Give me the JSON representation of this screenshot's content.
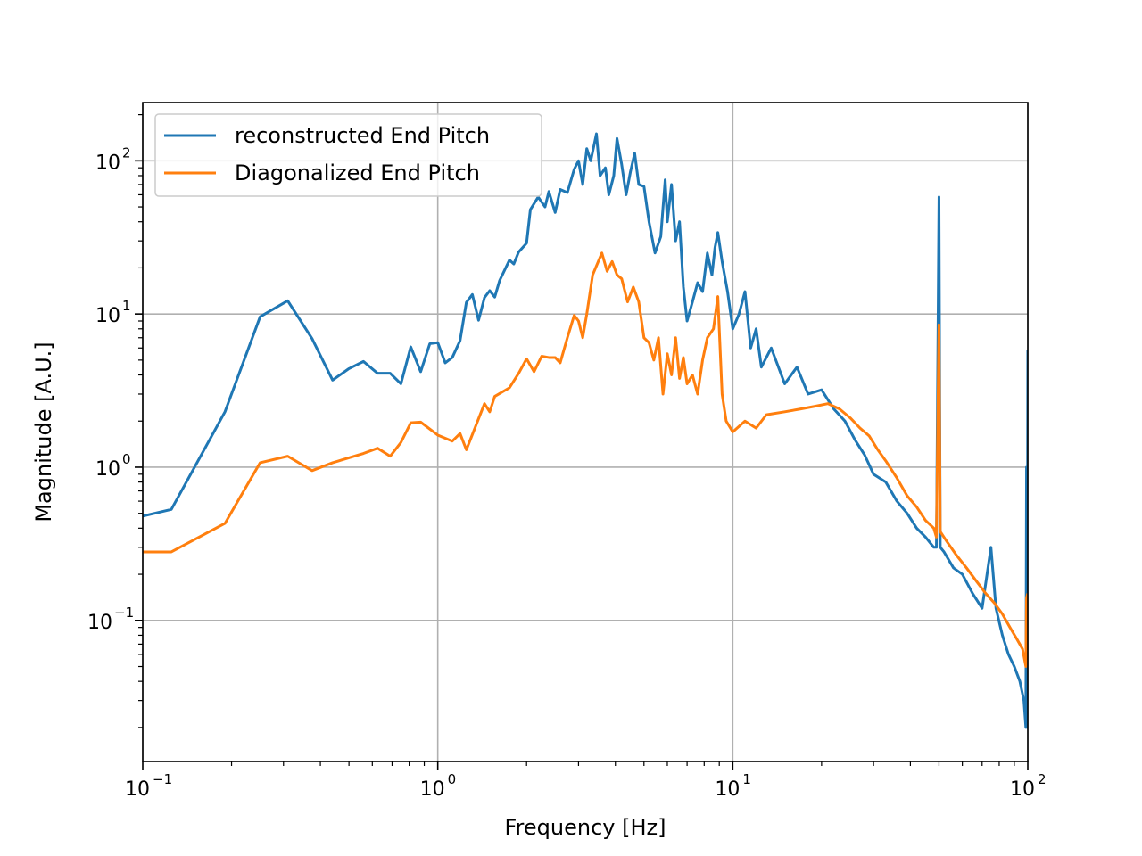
{
  "chart_data": {
    "type": "line",
    "title": "",
    "xlabel": "Frequency [Hz]",
    "ylabel": "Magnitude [A.U.]",
    "xscale": "log",
    "yscale": "log",
    "xlim": [
      0.1,
      100
    ],
    "ylim": [
      0.012,
      240
    ],
    "grid": true,
    "legend_position": "top-left",
    "x_ticks": [
      {
        "base": "10",
        "exp": "−1",
        "value": 0.1
      },
      {
        "base": "10",
        "exp": "0",
        "value": 1
      },
      {
        "base": "10",
        "exp": "1",
        "value": 10
      },
      {
        "base": "10",
        "exp": "2",
        "value": 100
      }
    ],
    "y_ticks": [
      {
        "base": "10",
        "exp": "−1",
        "value": 0.1
      },
      {
        "base": "10",
        "exp": "0",
        "value": 1
      },
      {
        "base": "10",
        "exp": "1",
        "value": 10
      },
      {
        "base": "10",
        "exp": "2",
        "value": 100
      }
    ],
    "series": [
      {
        "name": "reconstructed End Pitch",
        "color": "#1f77b4",
        "points": [
          [
            0.1,
            0.48
          ],
          [
            0.125,
            0.53
          ],
          [
            0.19,
            2.3
          ],
          [
            0.25,
            9.6
          ],
          [
            0.31,
            12.2
          ],
          [
            0.375,
            6.9
          ],
          [
            0.44,
            3.7
          ],
          [
            0.5,
            4.4
          ],
          [
            0.56,
            4.9
          ],
          [
            0.625,
            4.1
          ],
          [
            0.69,
            4.1
          ],
          [
            0.75,
            3.5
          ],
          [
            0.81,
            6.1
          ],
          [
            0.875,
            4.2
          ],
          [
            0.94,
            6.4
          ],
          [
            1.0,
            6.5
          ],
          [
            1.06,
            4.8
          ],
          [
            1.12,
            5.2
          ],
          [
            1.19,
            6.7
          ],
          [
            1.25,
            11.9
          ],
          [
            1.31,
            13.4
          ],
          [
            1.375,
            9.1
          ],
          [
            1.44,
            12.8
          ],
          [
            1.5,
            14.2
          ],
          [
            1.56,
            12.9
          ],
          [
            1.62,
            16.5
          ],
          [
            1.75,
            22.5
          ],
          [
            1.81,
            21.2
          ],
          [
            1.88,
            25.4
          ],
          [
            2.0,
            29.0
          ],
          [
            2.06,
            48.0
          ],
          [
            2.19,
            58.0
          ],
          [
            2.31,
            50.0
          ],
          [
            2.38,
            63.0
          ],
          [
            2.5,
            46.0
          ],
          [
            2.6,
            65.0
          ],
          [
            2.75,
            62.0
          ],
          [
            2.9,
            88.0
          ],
          [
            3.0,
            100.0
          ],
          [
            3.1,
            70.0
          ],
          [
            3.2,
            120.0
          ],
          [
            3.3,
            100.0
          ],
          [
            3.45,
            150.0
          ],
          [
            3.55,
            80.0
          ],
          [
            3.7,
            90.0
          ],
          [
            3.8,
            60.0
          ],
          [
            3.95,
            80.0
          ],
          [
            4.05,
            140.0
          ],
          [
            4.2,
            95.0
          ],
          [
            4.35,
            60.0
          ],
          [
            4.5,
            85.0
          ],
          [
            4.65,
            112.0
          ],
          [
            4.8,
            70.0
          ],
          [
            5.0,
            68.0
          ],
          [
            5.2,
            40.0
          ],
          [
            5.45,
            25.0
          ],
          [
            5.7,
            32.0
          ],
          [
            5.9,
            75.0
          ],
          [
            6.0,
            40.0
          ],
          [
            6.2,
            70.0
          ],
          [
            6.4,
            30.0
          ],
          [
            6.6,
            40.0
          ],
          [
            6.8,
            15.0
          ],
          [
            7.0,
            9.0
          ],
          [
            7.3,
            12.0
          ],
          [
            7.6,
            16.0
          ],
          [
            7.9,
            14.0
          ],
          [
            8.2,
            25.0
          ],
          [
            8.5,
            18.0
          ],
          [
            8.7,
            27.0
          ],
          [
            8.9,
            34.0
          ],
          [
            9.2,
            22.0
          ],
          [
            9.6,
            14.0
          ],
          [
            10.0,
            8.0
          ],
          [
            10.5,
            10.0
          ],
          [
            11.0,
            14.0
          ],
          [
            11.5,
            6.0
          ],
          [
            12.0,
            8.0
          ],
          [
            12.5,
            4.5
          ],
          [
            13.5,
            6.0
          ],
          [
            15.0,
            3.5
          ],
          [
            16.5,
            4.5
          ],
          [
            18.0,
            3.0
          ],
          [
            20.0,
            3.2
          ],
          [
            22.0,
            2.4
          ],
          [
            24.0,
            2.0
          ],
          [
            26.0,
            1.5
          ],
          [
            28.0,
            1.2
          ],
          [
            30.0,
            0.9
          ],
          [
            33.0,
            0.8
          ],
          [
            36.0,
            0.6
          ],
          [
            39.0,
            0.5
          ],
          [
            42.0,
            0.4
          ],
          [
            45.0,
            0.35
          ],
          [
            48.0,
            0.3
          ],
          [
            49.0,
            0.3
          ],
          [
            50.0,
            58.0
          ],
          [
            50.5,
            0.3
          ],
          [
            52.0,
            0.28
          ],
          [
            56.0,
            0.22
          ],
          [
            60.0,
            0.2
          ],
          [
            65.0,
            0.15
          ],
          [
            70.0,
            0.12
          ],
          [
            75.0,
            0.3
          ],
          [
            78.0,
            0.12
          ],
          [
            82.0,
            0.08
          ],
          [
            86.0,
            0.06
          ],
          [
            90.0,
            0.05
          ],
          [
            94.0,
            0.04
          ],
          [
            97.0,
            0.03
          ],
          [
            98.5,
            0.02
          ],
          [
            99.0,
            1.0
          ],
          [
            99.5,
            0.02
          ],
          [
            100.0,
            5.8
          ]
        ]
      },
      {
        "name": "Diagonalized End Pitch",
        "color": "#ff7f0e",
        "points": [
          [
            0.1,
            0.28
          ],
          [
            0.125,
            0.28
          ],
          [
            0.19,
            0.43
          ],
          [
            0.25,
            1.07
          ],
          [
            0.31,
            1.18
          ],
          [
            0.375,
            0.95
          ],
          [
            0.44,
            1.07
          ],
          [
            0.56,
            1.23
          ],
          [
            0.625,
            1.33
          ],
          [
            0.69,
            1.18
          ],
          [
            0.75,
            1.45
          ],
          [
            0.81,
            1.95
          ],
          [
            0.875,
            1.97
          ],
          [
            1.0,
            1.62
          ],
          [
            1.12,
            1.48
          ],
          [
            1.19,
            1.66
          ],
          [
            1.25,
            1.3
          ],
          [
            1.44,
            2.6
          ],
          [
            1.5,
            2.3
          ],
          [
            1.56,
            2.9
          ],
          [
            1.75,
            3.3
          ],
          [
            1.88,
            4.1
          ],
          [
            2.0,
            5.1
          ],
          [
            2.12,
            4.2
          ],
          [
            2.25,
            5.3
          ],
          [
            2.38,
            5.2
          ],
          [
            2.5,
            5.2
          ],
          [
            2.6,
            4.8
          ],
          [
            2.75,
            7.0
          ],
          [
            2.9,
            9.8
          ],
          [
            3.0,
            9.0
          ],
          [
            3.1,
            7.0
          ],
          [
            3.2,
            10.0
          ],
          [
            3.35,
            18.0
          ],
          [
            3.5,
            22.0
          ],
          [
            3.6,
            25.0
          ],
          [
            3.75,
            19.0
          ],
          [
            3.9,
            22.0
          ],
          [
            4.05,
            18.0
          ],
          [
            4.2,
            17.0
          ],
          [
            4.4,
            12.0
          ],
          [
            4.6,
            15.0
          ],
          [
            4.8,
            12.0
          ],
          [
            5.0,
            7.0
          ],
          [
            5.2,
            6.5
          ],
          [
            5.4,
            5.0
          ],
          [
            5.6,
            7.0
          ],
          [
            5.8,
            3.0
          ],
          [
            6.0,
            5.5
          ],
          [
            6.2,
            4.0
          ],
          [
            6.4,
            7.0
          ],
          [
            6.6,
            3.8
          ],
          [
            6.8,
            5.2
          ],
          [
            7.0,
            3.5
          ],
          [
            7.3,
            4.0
          ],
          [
            7.6,
            3.0
          ],
          [
            7.9,
            5.0
          ],
          [
            8.2,
            7.0
          ],
          [
            8.6,
            8.0
          ],
          [
            8.9,
            13.0
          ],
          [
            9.2,
            3.0
          ],
          [
            9.5,
            2.0
          ],
          [
            10.0,
            1.7
          ],
          [
            11.0,
            2.0
          ],
          [
            12.0,
            1.8
          ],
          [
            13.0,
            2.2
          ],
          [
            15.0,
            2.3
          ],
          [
            17.0,
            2.4
          ],
          [
            19.0,
            2.5
          ],
          [
            21.0,
            2.6
          ],
          [
            23.0,
            2.4
          ],
          [
            25.0,
            2.1
          ],
          [
            27.0,
            1.8
          ],
          [
            29.0,
            1.6
          ],
          [
            31.0,
            1.3
          ],
          [
            33.0,
            1.1
          ],
          [
            36.0,
            0.85
          ],
          [
            39.0,
            0.65
          ],
          [
            42.0,
            0.55
          ],
          [
            45.0,
            0.45
          ],
          [
            48.0,
            0.4
          ],
          [
            49.0,
            0.35
          ],
          [
            50.0,
            8.5
          ],
          [
            50.5,
            0.38
          ],
          [
            53.0,
            0.33
          ],
          [
            57.0,
            0.27
          ],
          [
            62.0,
            0.22
          ],
          [
            67.0,
            0.18
          ],
          [
            72.0,
            0.15
          ],
          [
            77.0,
            0.13
          ],
          [
            82.0,
            0.11
          ],
          [
            87.0,
            0.09
          ],
          [
            92.0,
            0.075
          ],
          [
            96.0,
            0.065
          ],
          [
            98.5,
            0.05
          ],
          [
            99.0,
            0.14
          ],
          [
            100.0,
            0.15
          ]
        ]
      }
    ]
  }
}
